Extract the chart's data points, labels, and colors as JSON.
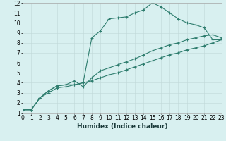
{
  "line1": {
    "x": [
      0,
      1,
      2,
      3,
      4,
      5,
      6,
      7,
      8,
      9,
      10,
      11,
      12,
      13,
      14,
      15,
      16,
      17,
      18,
      19,
      20,
      21,
      22,
      23
    ],
    "y": [
      1.3,
      1.3,
      2.5,
      3.2,
      3.7,
      3.8,
      3.8,
      4.0,
      8.5,
      9.2,
      10.4,
      10.5,
      10.6,
      11.0,
      11.3,
      12.0,
      11.6,
      11.0,
      10.4,
      10.0,
      9.8,
      9.5,
      8.3,
      8.3
    ]
  },
  "line2": {
    "x": [
      0,
      1,
      2,
      3,
      4,
      5,
      6,
      7,
      8,
      9,
      10,
      11,
      12,
      13,
      14,
      15,
      16,
      17,
      18,
      19,
      20,
      21,
      22,
      23
    ],
    "y": [
      1.3,
      1.3,
      2.5,
      3.2,
      3.7,
      3.8,
      4.2,
      3.6,
      4.5,
      5.2,
      5.5,
      5.8,
      6.1,
      6.4,
      6.8,
      7.2,
      7.5,
      7.8,
      8.0,
      8.3,
      8.5,
      8.7,
      8.8,
      8.5
    ]
  },
  "line3": {
    "x": [
      0,
      1,
      2,
      3,
      4,
      5,
      6,
      7,
      8,
      9,
      10,
      11,
      12,
      13,
      14,
      15,
      16,
      17,
      18,
      19,
      20,
      21,
      22,
      23
    ],
    "y": [
      1.3,
      1.3,
      2.5,
      3.0,
      3.5,
      3.6,
      3.8,
      4.0,
      4.2,
      4.5,
      4.8,
      5.0,
      5.3,
      5.6,
      5.9,
      6.2,
      6.5,
      6.8,
      7.0,
      7.3,
      7.5,
      7.7,
      8.0,
      8.3
    ]
  },
  "color": "#2e7d6e",
  "bg_color": "#d8f0f0",
  "grid_color": "#c0d8d8",
  "xlim": [
    0,
    23
  ],
  "ylim": [
    1,
    12
  ],
  "xticks": [
    0,
    1,
    2,
    3,
    4,
    5,
    6,
    7,
    8,
    9,
    10,
    11,
    12,
    13,
    14,
    15,
    16,
    17,
    18,
    19,
    20,
    21,
    22,
    23
  ],
  "yticks": [
    1,
    2,
    3,
    4,
    5,
    6,
    7,
    8,
    9,
    10,
    11,
    12
  ],
  "xlabel": "Humidex (Indice chaleur)",
  "marker": "+",
  "tick_fontsize": 5.5,
  "label_fontsize": 6.5
}
